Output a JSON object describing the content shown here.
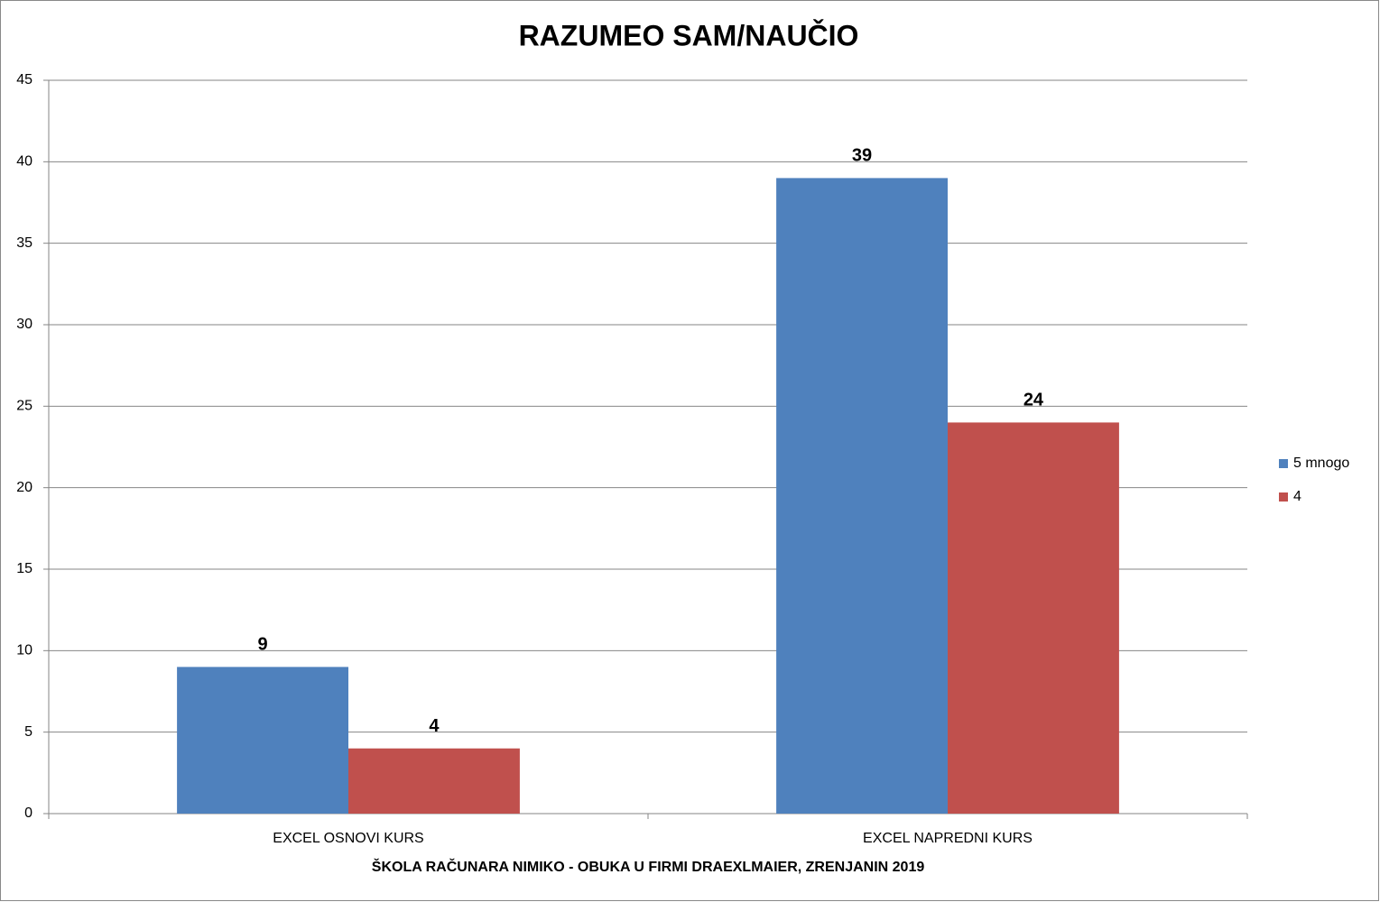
{
  "chart_data": {
    "type": "bar",
    "title": "RAZUMEO SAM/NAUČIO",
    "x_label": "ŠKOLA RAČUNARA NIMIKO - OBUKA U FIRMI DRAEXLMAIER, ZRENJANIN 2019",
    "categories": [
      "EXCEL OSNOVI KURS",
      "EXCEL NAPREDNI KURS"
    ],
    "series": [
      {
        "name": "5 mnogo",
        "color": "#4f81bd",
        "values": [
          9,
          39
        ]
      },
      {
        "name": "4",
        "color": "#c0504d",
        "values": [
          4,
          24
        ]
      }
    ],
    "ylim": [
      0,
      45
    ],
    "yticks": [
      0,
      5,
      10,
      15,
      20,
      25,
      30,
      35,
      40,
      45
    ],
    "grid": true,
    "legend": "right"
  }
}
